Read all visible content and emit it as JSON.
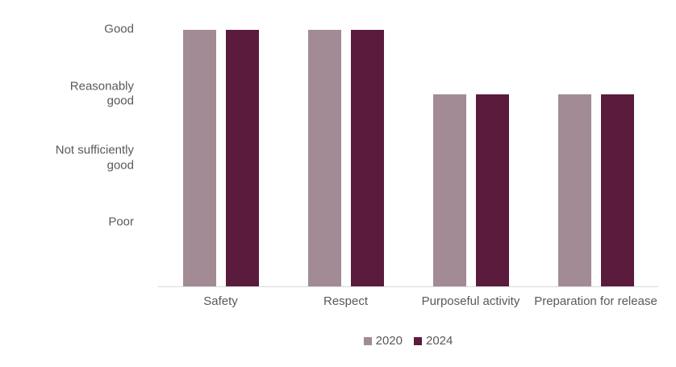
{
  "chart_data": {
    "type": "bar",
    "title": "",
    "categories": [
      "Safety",
      "Respect",
      "Purposeful activity",
      "Preparation for release"
    ],
    "series": [
      {
        "name": "2020",
        "color": "#A28B95",
        "values": [
          4,
          4,
          3,
          3
        ]
      },
      {
        "name": "2024",
        "color": "#5B1B3D",
        "values": [
          4,
          4,
          3,
          3
        ]
      }
    ],
    "y_ticks": [
      {
        "label": "Good",
        "value": 4
      },
      {
        "label": "Reasonably good",
        "value": 3
      },
      {
        "label": "Not sufficiently good",
        "value": 2
      },
      {
        "label": "Poor",
        "value": 1
      }
    ],
    "ylim": [
      0,
      4
    ],
    "value_scale": "4=Good, 3=Reasonably good, 2=Not sufficiently good, 1=Poor",
    "grid": false,
    "legend_position": "bottom",
    "legend_labels": [
      "2020",
      "2024"
    ]
  },
  "colors": {
    "background": "#FFFFFF",
    "axis_line": "#D9D9D9",
    "text": "#595959"
  }
}
